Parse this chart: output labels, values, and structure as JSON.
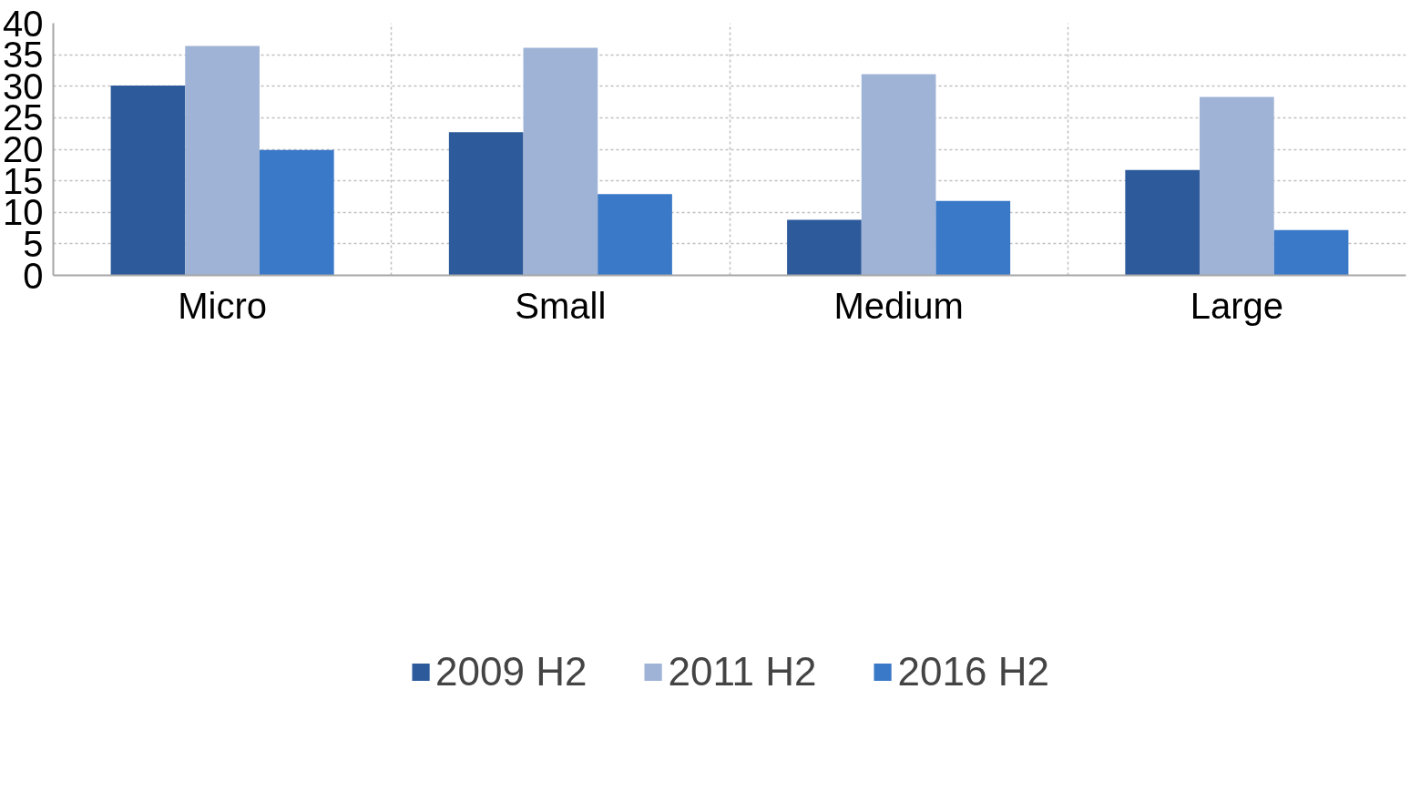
{
  "chart_data": {
    "type": "bar",
    "categories": [
      "Micro",
      "Small",
      "Medium",
      "Large"
    ],
    "series": [
      {
        "name": "2009 H2",
        "color": "#2d5a9a",
        "values": [
          30.1,
          22.7,
          8.8,
          16.7
        ]
      },
      {
        "name": "2011 H2",
        "color": "#9fb3d6",
        "values": [
          36.4,
          36.1,
          31.9,
          28.3
        ]
      },
      {
        "name": "2016 H2",
        "color": "#3a78c8",
        "values": [
          19.9,
          12.9,
          11.8,
          7.2
        ]
      }
    ],
    "ylim": [
      0,
      40
    ],
    "yticks": [
      0,
      5,
      10,
      15,
      20,
      25,
      30,
      35,
      40
    ],
    "grid": true,
    "legend": "bottom"
  }
}
